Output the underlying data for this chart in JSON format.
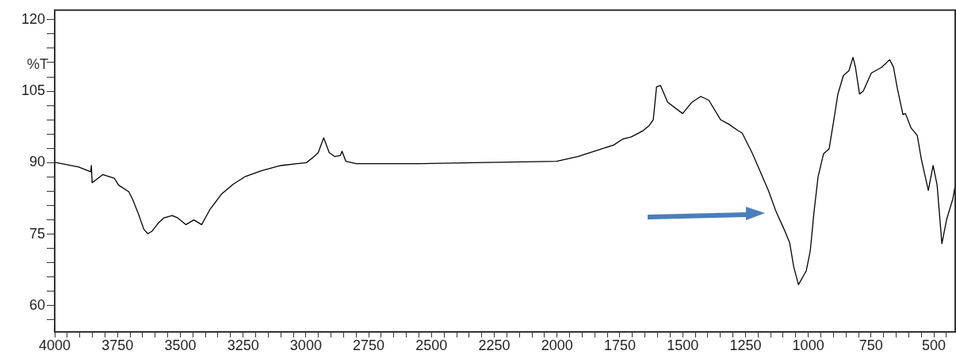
{
  "chart_data": {
    "type": "line",
    "ylabel": "%T",
    "x": [
      4000,
      3904,
      3857,
      3854,
      3851,
      3809,
      3762,
      3746,
      3705,
      3689,
      3667,
      3645,
      3629,
      3613,
      3588,
      3566,
      3532,
      3510,
      3478,
      3446,
      3415,
      3383,
      3336,
      3289,
      3241,
      3178,
      3100,
      3036,
      2998,
      2967,
      2951,
      2929,
      2907,
      2885,
      2863,
      2856,
      2841,
      2800,
      2548,
      2327,
      2002,
      1917,
      1822,
      1775,
      1737,
      1705,
      1658,
      1633,
      1617,
      1604,
      1588,
      1560,
      1500,
      1465,
      1428,
      1396,
      1349,
      1317,
      1279,
      1263,
      1222,
      1190,
      1159,
      1128,
      1096,
      1074,
      1058,
      1039,
      1008,
      992,
      977,
      961,
      939,
      917,
      898,
      882,
      860,
      838,
      822,
      812,
      796,
      781,
      749,
      708,
      676,
      661,
      645,
      623,
      613,
      591,
      566,
      550,
      522,
      503,
      487,
      468,
      449,
      424,
      415
    ],
    "series": [
      {
        "color": "#000000",
        "values": [
          90.1,
          89.1,
          88.1,
          89.4,
          85.8,
          87.5,
          86.7,
          85.3,
          83.9,
          82.2,
          79.3,
          76.0,
          75.1,
          75.6,
          77.3,
          78.4,
          78.9,
          78.4,
          77.0,
          78.0,
          77.0,
          80.1,
          83.4,
          85.5,
          87.1,
          88.3,
          89.4,
          89.8,
          90.0,
          91.3,
          92.1,
          95.2,
          92.1,
          91.3,
          91.5,
          92.4,
          90.3,
          89.8,
          89.8,
          90.0,
          90.3,
          91.3,
          92.9,
          93.7,
          95.0,
          95.4,
          96.7,
          97.8,
          99.0,
          105.9,
          106.2,
          102.7,
          100.3,
          102.6,
          103.9,
          103.1,
          99.0,
          98.1,
          96.7,
          96.2,
          91.9,
          88.0,
          84.2,
          79.7,
          76.0,
          73.2,
          68.2,
          64.4,
          67.3,
          71.5,
          79.7,
          87.0,
          91.9,
          92.9,
          99.0,
          104.4,
          108.3,
          109.3,
          112.1,
          110.0,
          104.4,
          105.0,
          108.8,
          110.0,
          111.6,
          110.1,
          105.5,
          100.1,
          100.3,
          97.3,
          95.7,
          90.8,
          84.2,
          89.4,
          85.3,
          73.0,
          78.1,
          82.5,
          85.3
        ]
      }
    ],
    "xlim": [
      4000,
      415
    ],
    "xticks": [
      4000,
      {
        "value": 3950,
        "label": null
      },
      {
        "value": 3900,
        "label": null
      },
      {
        "value": 3850,
        "label": null
      },
      {
        "value": 3800,
        "label": null
      },
      3750,
      {
        "value": 3700,
        "label": null
      },
      {
        "value": 3650,
        "label": null
      },
      {
        "value": 3600,
        "label": null
      },
      {
        "value": 3550,
        "label": null
      },
      3500,
      {
        "value": 3450,
        "label": null
      },
      {
        "value": 3400,
        "label": null
      },
      {
        "value": 3350,
        "label": null
      },
      {
        "value": 3300,
        "label": null
      },
      3250,
      {
        "value": 3200,
        "label": null
      },
      {
        "value": 3150,
        "label": null
      },
      {
        "value": 3100,
        "label": null
      },
      {
        "value": 3050,
        "label": null
      },
      3000,
      {
        "value": 2950,
        "label": null
      },
      {
        "value": 2900,
        "label": null
      },
      {
        "value": 2850,
        "label": null
      },
      {
        "value": 2800,
        "label": null
      },
      2750,
      {
        "value": 2700,
        "label": null
      },
      {
        "value": 2650,
        "label": null
      },
      {
        "value": 2600,
        "label": null
      },
      {
        "value": 2550,
        "label": null
      },
      2500,
      {
        "value": 2450,
        "label": null
      },
      {
        "value": 2400,
        "label": null
      },
      {
        "value": 2350,
        "label": null
      },
      {
        "value": 2300,
        "label": null
      },
      2250,
      {
        "value": 2200,
        "label": null
      },
      {
        "value": 2150,
        "label": null
      },
      {
        "value": 2100,
        "label": null
      },
      {
        "value": 2050,
        "label": null
      },
      2000,
      {
        "value": 1950,
        "label": null
      },
      {
        "value": 1900,
        "label": null
      },
      {
        "value": 1850,
        "label": null
      },
      {
        "value": 1800,
        "label": null
      },
      1750,
      {
        "value": 1700,
        "label": null
      },
      {
        "value": 1650,
        "label": null
      },
      {
        "value": 1600,
        "label": null
      },
      {
        "value": 1550,
        "label": null
      },
      1500,
      {
        "value": 1450,
        "label": null
      },
      {
        "value": 1400,
        "label": null
      },
      {
        "value": 1350,
        "label": null
      },
      {
        "value": 1300,
        "label": null
      },
      1250,
      {
        "value": 1200,
        "label": null
      },
      {
        "value": 1150,
        "label": null
      },
      {
        "value": 1100,
        "label": null
      },
      {
        "value": 1050,
        "label": null
      },
      1000,
      {
        "value": 950,
        "label": null
      },
      {
        "value": 900,
        "label": null
      },
      {
        "value": 850,
        "label": null
      },
      {
        "value": 800,
        "label": null
      },
      750,
      {
        "value": 700,
        "label": null
      },
      {
        "value": 650,
        "label": null
      },
      {
        "value": 600,
        "label": null
      },
      {
        "value": 550,
        "label": null
      },
      500,
      {
        "value": 450,
        "label": null
      }
    ],
    "ylim": [
      54.5,
      122
    ],
    "yticks": [
      {
        "value": 57,
        "label": null
      },
      60,
      {
        "value": 63,
        "label": null
      },
      {
        "value": 66,
        "label": null
      },
      {
        "value": 69,
        "label": null
      },
      {
        "value": 72,
        "label": null
      },
      75,
      {
        "value": 78,
        "label": null
      },
      {
        "value": 81,
        "label": null
      },
      {
        "value": 84,
        "label": null
      },
      {
        "value": 87,
        "label": null
      },
      90,
      {
        "value": 93,
        "label": null
      },
      {
        "value": 96,
        "label": null
      },
      {
        "value": 99,
        "label": null
      },
      {
        "value": 102,
        "label": null
      },
      105,
      {
        "value": 108,
        "label": null
      },
      {
        "value": 111,
        "label": null
      },
      {
        "value": 114,
        "label": null
      },
      {
        "value": 117,
        "label": null
      },
      120
    ],
    "grid": false,
    "legend": false,
    "marker": "none",
    "line_style": "solid"
  }
}
